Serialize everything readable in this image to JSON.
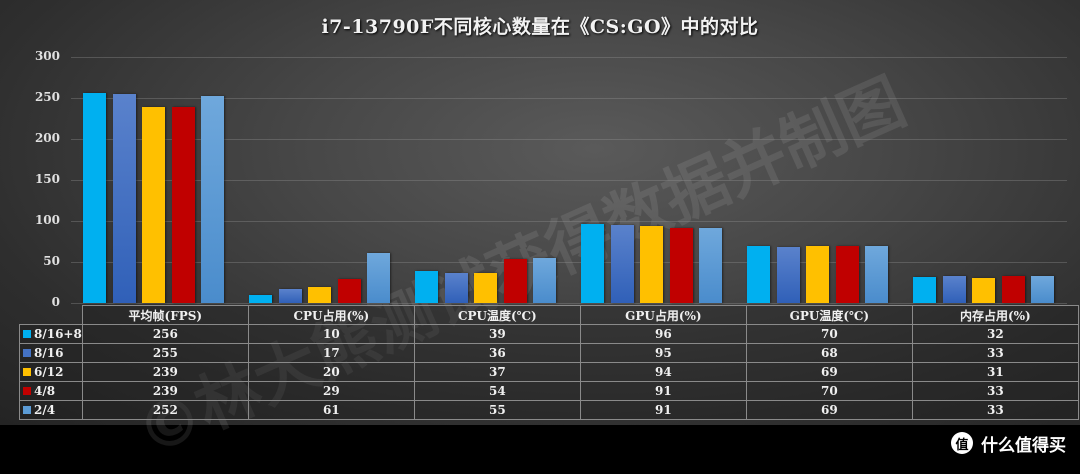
{
  "title": "i7-13790F不同核心数量在《CS:GO》中的对比",
  "watermark": "©林大熊测试获得数据并制图",
  "footer": {
    "logo_glyph": "值",
    "brand": "什么值得买"
  },
  "colors": {
    "8/16+8": "#00b0f0",
    "8/16": "#4472c4",
    "6/12": "#ffc000",
    "4/8": "#c00000",
    "2/4": "#5b9bd5"
  },
  "chart_data": {
    "type": "bar",
    "title": "i7-13790F不同核心数量在《CS:GO》中的对比",
    "categories": [
      "平均帧(FPS)",
      "CPU占用(%)",
      "CPU温度(℃)",
      "GPU占用(%)",
      "GPU温度(℃)",
      "内存占用(%)"
    ],
    "series": [
      {
        "name": "8/16+8",
        "color": "#00b0f0",
        "values": [
          256,
          10,
          39,
          96,
          70,
          32
        ]
      },
      {
        "name": "8/16",
        "color": "#4472c4",
        "values": [
          255,
          17,
          36,
          95,
          68,
          33
        ]
      },
      {
        "name": "6/12",
        "color": "#ffc000",
        "values": [
          239,
          20,
          37,
          94,
          69,
          31
        ]
      },
      {
        "name": "4/8",
        "color": "#c00000",
        "values": [
          239,
          29,
          54,
          91,
          70,
          33
        ]
      },
      {
        "name": "2/4",
        "color": "#5b9bd5",
        "values": [
          252,
          61,
          55,
          91,
          69,
          33
        ]
      }
    ],
    "yticks": [
      0,
      50,
      100,
      150,
      200,
      250,
      300
    ],
    "ylim": [
      0,
      300
    ],
    "xlabel": "",
    "ylabel": "",
    "grid": true,
    "legend_position": "data-table"
  }
}
